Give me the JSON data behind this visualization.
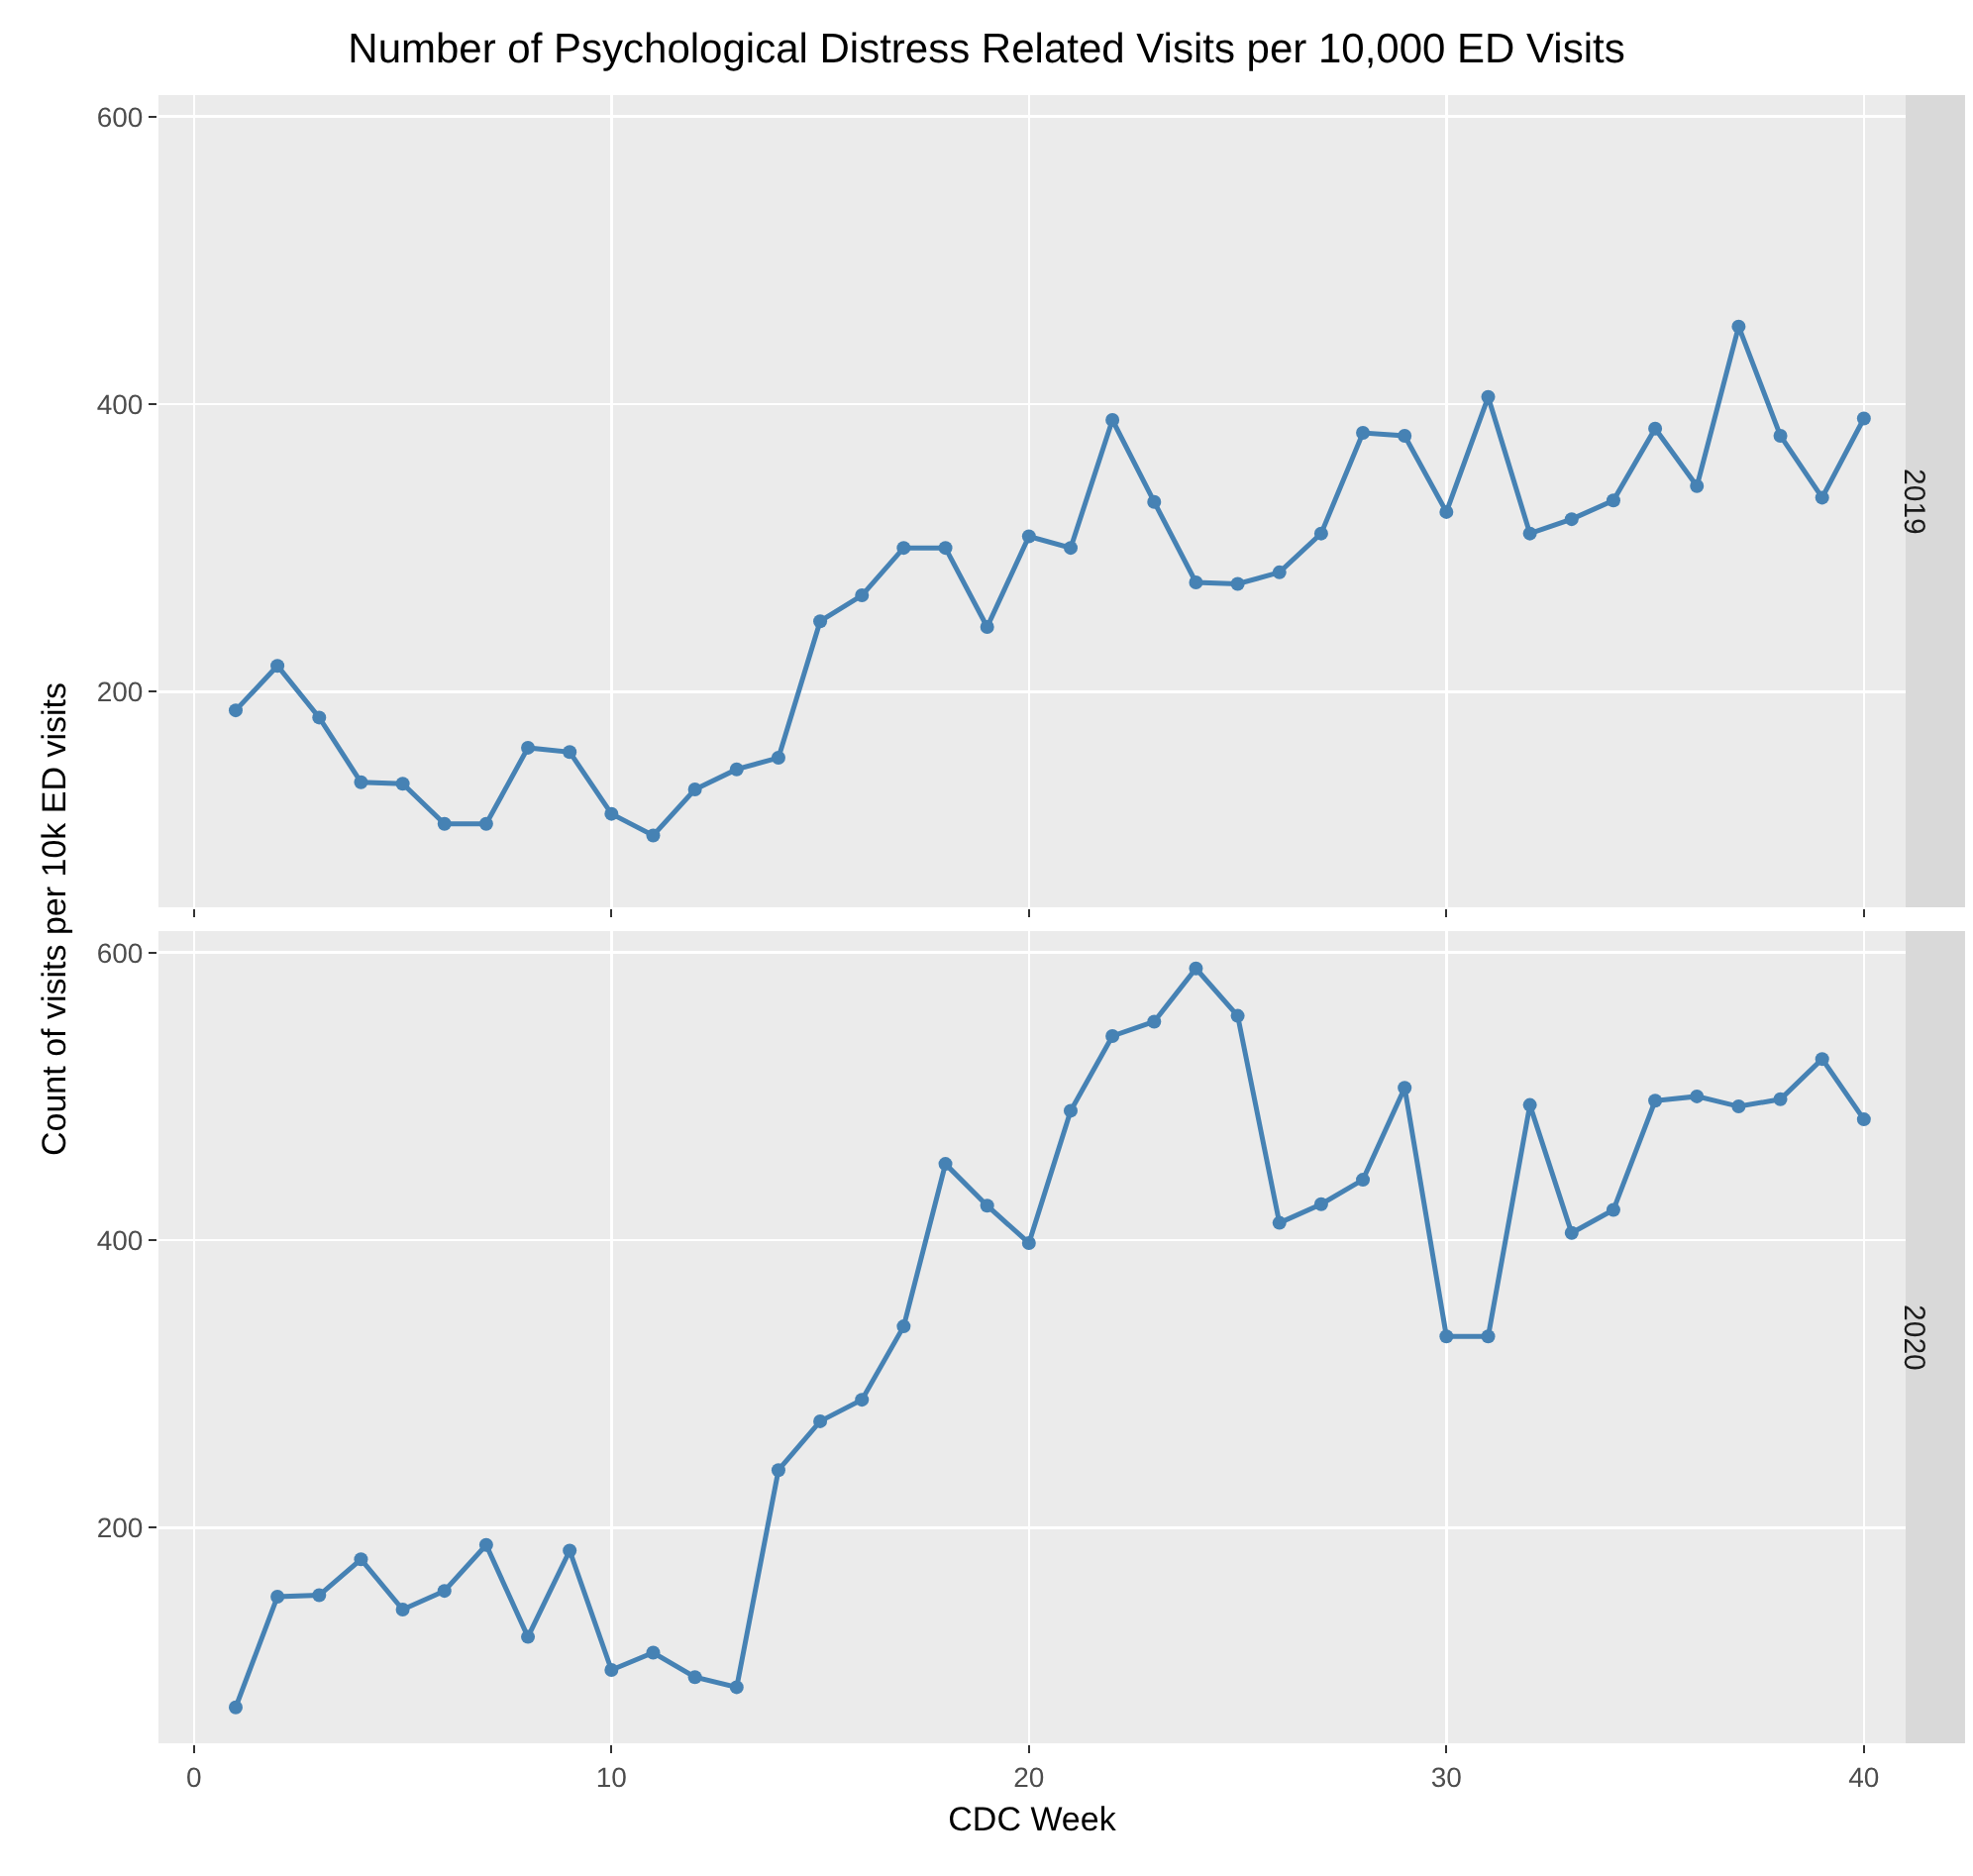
{
  "chart_data": [
    {
      "type": "line",
      "title": "Number of Psychological Distress Related Visits per 10,000 ED Visits",
      "ylabel": "Count of visits per 10k ED visits",
      "annotations": [
        "2019"
      ],
      "x": [
        1,
        2,
        3,
        4,
        5,
        6,
        7,
        8,
        9,
        10,
        11,
        12,
        13,
        14,
        15,
        16,
        17,
        18,
        19,
        20,
        21,
        22,
        23,
        24,
        25,
        26,
        27,
        28,
        29,
        30,
        31,
        32,
        33,
        34,
        35,
        36,
        37,
        38,
        39,
        40
      ],
      "series": [
        {
          "color": "#4682b4",
          "values": [
            187,
            218,
            182,
            137,
            136,
            108,
            108,
            161,
            158,
            115,
            100,
            132,
            146,
            154,
            249,
            267,
            300,
            300,
            245,
            308,
            300,
            389,
            332,
            276,
            275,
            283,
            310,
            380,
            378,
            325,
            405,
            310,
            320,
            333,
            383,
            343,
            454,
            378,
            335,
            390
          ]
        }
      ],
      "xlim": [
        -0.85,
        41.0
      ],
      "xticks": [
        0,
        10,
        20,
        30,
        40
      ],
      "ylim": [
        50,
        615
      ],
      "yticks": [
        200,
        400,
        600
      ],
      "grid": true,
      "marker": "circle",
      "line_style": "solid",
      "tick_labels": "y"
    },
    {
      "type": "line",
      "xlabel": "CDC Week",
      "annotations": [
        "2020"
      ],
      "x": [
        1,
        2,
        3,
        4,
        5,
        6,
        7,
        8,
        9,
        10,
        11,
        12,
        13,
        14,
        15,
        16,
        17,
        18,
        19,
        20,
        21,
        22,
        23,
        24,
        25,
        26,
        27,
        28,
        29,
        30,
        31,
        32,
        33,
        34,
        35,
        36,
        37,
        38,
        39,
        40
      ],
      "series": [
        {
          "color": "#4682b4",
          "values": [
            75,
            152,
            153,
            178,
            143,
            156,
            188,
            124,
            184,
            101,
            113,
            96,
            89,
            240,
            274,
            289,
            340,
            453,
            424,
            398,
            490,
            542,
            552,
            589,
            556,
            412,
            425,
            442,
            506,
            333,
            333,
            494,
            405,
            421,
            497,
            500,
            493,
            498,
            526,
            484
          ]
        }
      ],
      "xlim": [
        -0.85,
        41.0
      ],
      "xticks": [
        0,
        10,
        20,
        30,
        40
      ],
      "ylim": [
        50,
        615
      ],
      "yticks": [
        200,
        400,
        600
      ],
      "grid": true,
      "marker": "circle",
      "line_style": "solid"
    }
  ]
}
